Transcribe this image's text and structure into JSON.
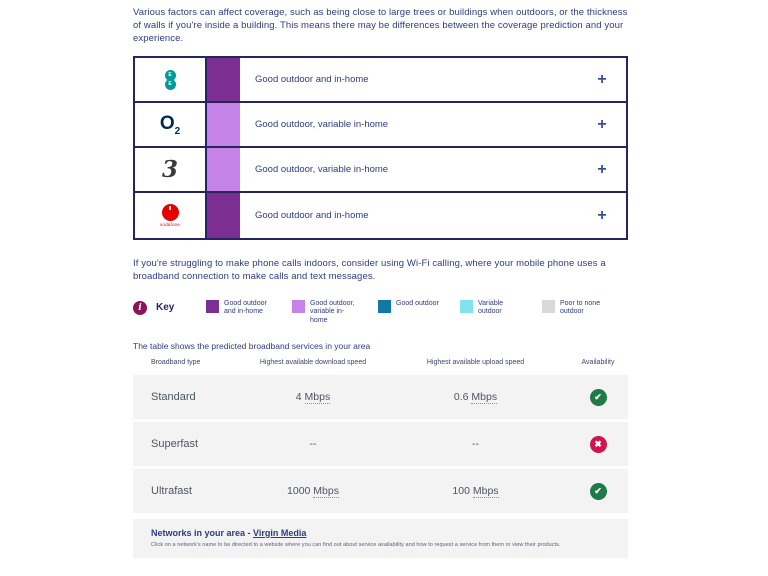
{
  "intro_paragraph": "Various factors can affect coverage, such as being close to large trees or buildings when outdoors, or the thickness of walls if you're inside a building. This means there may be differences between the coverage prediction and your experience.",
  "wifi_paragraph": "If you're struggling to make phone calls indoors, consider using Wi-Fi calling, where your mobile phone uses a broadband connection to make calls and text messages.",
  "operators_table": {
    "expand_label": "+",
    "rows": [
      {
        "name": "EE",
        "logo": "ee-logo",
        "logo_letters": [
          "E",
          "E"
        ],
        "coverage": "Good outdoor and in-home",
        "level_color": "#7d2e93"
      },
      {
        "name": "O2",
        "logo": "o2-logo",
        "logo_text": "O",
        "logo_sub": "2",
        "coverage": "Good outdoor, variable in-home",
        "level_color": "#c583e8"
      },
      {
        "name": "Three",
        "logo": "three-logo",
        "logo_text": "3",
        "coverage": "Good outdoor, variable in-home",
        "level_color": "#c583e8"
      },
      {
        "name": "Vodafone",
        "logo": "vodafone-logo",
        "logo_mark": "'",
        "logo_text": "vodafone",
        "coverage": "Good outdoor and in-home",
        "level_color": "#7d2e93"
      }
    ]
  },
  "key": {
    "label": "Key",
    "info_glyph": "i",
    "items": [
      {
        "label": "Good outdoor and in-home",
        "color": "#7d2e93"
      },
      {
        "label": "Good outdoor, variable in-home",
        "color": "#c583e8"
      },
      {
        "label": "Good outdoor",
        "color": "#1279a7"
      },
      {
        "label": "Variable outdoor",
        "color": "#7fe3f2"
      },
      {
        "label": "Poor to none outdoor",
        "color": "#d8d8d8"
      }
    ]
  },
  "broadband": {
    "intro": "The table shows the predicted broadband services in your area",
    "columns": [
      "Broadband type",
      "Highest available download speed",
      "Highest available upload speed",
      "Availability"
    ],
    "rows": [
      {
        "type": "Standard",
        "download_value": "4",
        "download_unit": "Mbps",
        "upload_value": "0.6",
        "upload_unit": "Mbps",
        "status": "available",
        "status_icon": "✔",
        "status_color": "#1e7a46"
      },
      {
        "type": "Superfast",
        "download_value": "--",
        "download_unit": "",
        "upload_value": "--",
        "upload_unit": "",
        "status": "not-available",
        "status_icon": "✖",
        "status_color": "#d6124e"
      },
      {
        "type": "Ultrafast",
        "download_value": "1000",
        "download_unit": "Mbps",
        "upload_value": "100",
        "upload_unit": "Mbps",
        "status": "available",
        "status_icon": "✔",
        "status_color": "#1e7a46"
      }
    ]
  },
  "networks": {
    "heading": "Networks in your area - ",
    "link": "Virgin Media",
    "note": "Click on a network's name to be directed to a website where you can find out about service availability and how to request a service from them or view their products."
  }
}
